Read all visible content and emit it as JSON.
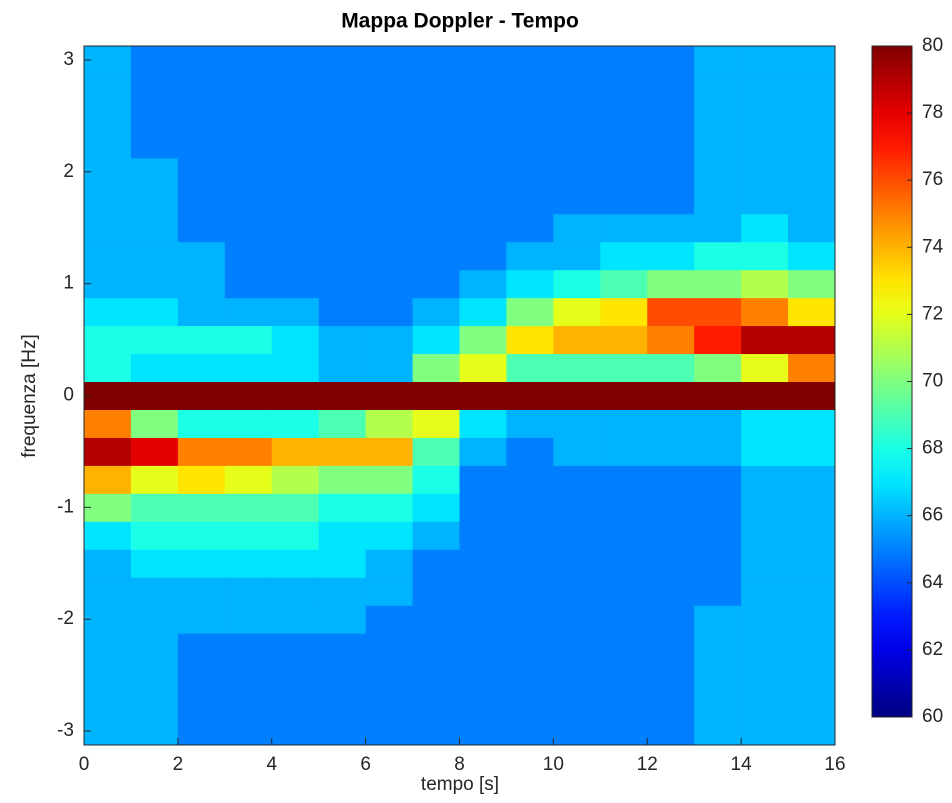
{
  "chart_data": {
    "type": "heatmap",
    "title": "Mappa Doppler - Tempo",
    "x_label": "tempo [s]",
    "y_label": "frequenza [Hz]",
    "colormap": "jet",
    "x": [
      0.5,
      1.5,
      2.5,
      3.5,
      4.5,
      5.5,
      6.5,
      7.5,
      8.5,
      9.5,
      10.5,
      11.5,
      12.5,
      13.5,
      14.5,
      15.5
    ],
    "y": [
      -3,
      -2.75,
      -2.5,
      -2.25,
      -2,
      -1.75,
      -1.5,
      -1.25,
      -1,
      -0.75,
      -0.5,
      -0.25,
      0,
      0.25,
      0.5,
      0.75,
      1,
      1.25,
      1.5,
      1.75,
      2,
      2.25,
      2.5,
      2.75,
      3
    ],
    "z": [
      [
        66,
        66,
        66,
        66,
        66,
        66,
        66,
        67,
        70,
        74,
        79,
        75,
        80,
        68,
        68,
        67,
        66,
        66,
        66,
        66,
        66,
        66,
        66,
        66,
        66
      ],
      [
        66,
        66,
        66,
        66,
        66,
        66,
        67,
        68,
        69,
        72,
        78,
        70,
        80,
        67,
        68,
        67,
        66,
        66,
        66,
        66,
        66,
        65,
        65,
        65,
        65
      ],
      [
        65,
        65,
        65,
        65,
        66,
        66,
        67,
        68,
        69,
        73,
        75,
        68,
        80,
        67,
        68,
        66,
        66,
        66,
        65,
        65,
        65,
        65,
        65,
        65,
        65
      ],
      [
        65,
        65,
        65,
        65,
        66,
        66,
        67,
        68,
        69,
        72,
        75,
        68,
        80,
        67,
        68,
        66,
        65,
        65,
        65,
        65,
        65,
        65,
        65,
        65,
        65
      ],
      [
        65,
        65,
        65,
        65,
        66,
        66,
        67,
        68,
        69,
        71,
        74,
        68,
        80,
        67,
        67,
        66,
        65,
        65,
        65,
        65,
        65,
        65,
        65,
        65,
        65
      ],
      [
        65,
        65,
        65,
        65,
        66,
        66,
        67,
        67,
        68,
        70,
        74,
        69,
        80,
        66,
        66,
        65,
        65,
        65,
        65,
        65,
        65,
        65,
        65,
        65,
        65
      ],
      [
        65,
        65,
        65,
        65,
        65,
        66,
        66,
        67,
        68,
        70,
        74,
        71,
        80,
        66,
        66,
        65,
        65,
        65,
        65,
        65,
        65,
        65,
        65,
        65,
        65
      ],
      [
        65,
        65,
        65,
        65,
        65,
        65,
        65,
        66,
        67,
        68,
        69,
        72,
        80,
        70,
        67,
        66,
        65,
        65,
        65,
        65,
        65,
        65,
        65,
        65,
        65
      ],
      [
        65,
        65,
        65,
        65,
        65,
        65,
        65,
        65,
        65,
        65,
        66,
        67,
        80,
        72,
        70,
        67,
        66,
        65,
        65,
        65,
        65,
        65,
        65,
        65,
        65
      ],
      [
        65,
        65,
        65,
        65,
        65,
        65,
        65,
        65,
        65,
        65,
        65,
        66,
        80,
        69,
        73,
        70,
        67,
        66,
        65,
        65,
        65,
        65,
        65,
        65,
        65
      ],
      [
        65,
        65,
        65,
        65,
        65,
        65,
        65,
        65,
        65,
        65,
        66,
        66,
        80,
        69,
        74,
        72,
        68,
        66,
        66,
        65,
        65,
        65,
        65,
        65,
        65
      ],
      [
        65,
        65,
        65,
        65,
        65,
        65,
        65,
        65,
        65,
        65,
        66,
        66,
        80,
        69,
        74,
        73,
        69,
        67,
        66,
        65,
        65,
        65,
        65,
        65,
        65
      ],
      [
        65,
        65,
        65,
        65,
        65,
        65,
        65,
        65,
        65,
        65,
        66,
        66,
        80,
        69,
        75,
        76,
        70,
        67,
        66,
        65,
        65,
        65,
        65,
        65,
        65
      ],
      [
        66,
        66,
        66,
        66,
        66,
        65,
        65,
        65,
        65,
        65,
        66,
        66,
        80,
        70,
        77,
        76,
        70,
        68,
        66,
        66,
        66,
        66,
        66,
        66,
        66
      ],
      [
        66,
        66,
        66,
        66,
        66,
        66,
        66,
        66,
        66,
        66,
        67,
        67,
        80,
        72,
        79,
        75,
        71,
        68,
        67,
        66,
        66,
        66,
        66,
        66,
        66
      ],
      [
        66,
        66,
        66,
        66,
        66,
        66,
        66,
        66,
        66,
        66,
        67,
        67,
        80,
        75,
        79,
        73,
        70,
        67,
        66,
        66,
        66,
        66,
        66,
        66,
        66
      ]
    ],
    "xlim": [
      0,
      16
    ],
    "xticks": [
      0,
      2,
      4,
      6,
      8,
      10,
      12,
      14,
      16
    ],
    "ylim": [
      -3.125,
      3.125
    ],
    "yticks": [
      -3,
      -2,
      -1,
      0,
      1,
      2,
      3
    ],
    "clim": [
      60,
      80
    ],
    "cticks": [
      60,
      62,
      64,
      66,
      68,
      70,
      72,
      74,
      76,
      78,
      80
    ]
  }
}
